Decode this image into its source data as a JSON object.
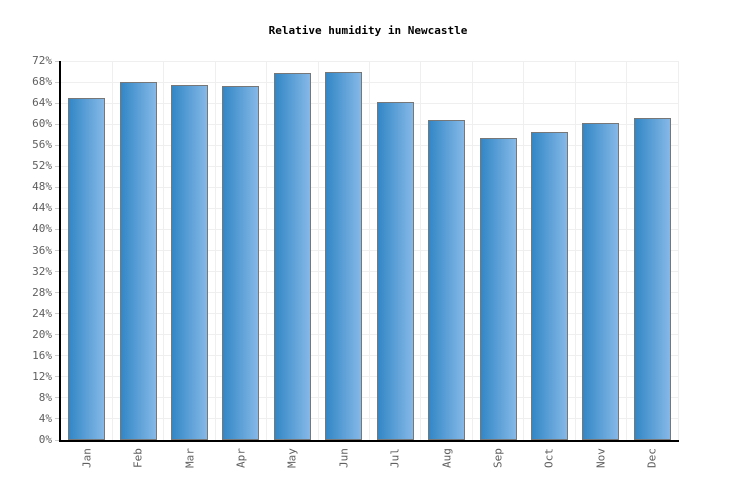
{
  "title": "Relative humidity in Newcastle",
  "chart_data": {
    "type": "bar",
    "title": "Relative humidity in Newcastle",
    "categories": [
      "Jan",
      "Feb",
      "Mar",
      "Apr",
      "May",
      "Jun",
      "Jul",
      "Aug",
      "Sep",
      "Oct",
      "Nov",
      "Dec"
    ],
    "values": [
      65,
      68,
      67.5,
      67.2,
      69.8,
      70,
      64.2,
      60.7,
      57.3,
      58.5,
      60.3,
      61.2
    ],
    "unit": "%",
    "xlabel": "",
    "ylabel": "",
    "ylim": [
      0,
      72
    ],
    "ytick_step": 4,
    "ytick_labels": [
      "0%",
      "4%",
      "8%",
      "12%",
      "16%",
      "20%",
      "24%",
      "28%",
      "32%",
      "36%",
      "40%",
      "44%",
      "48%",
      "52%",
      "56%",
      "60%",
      "64%",
      "68%",
      "72%"
    ],
    "grid": true,
    "legend": false,
    "bar_orientation": "vertical"
  },
  "colors": {
    "background": "#ffffff",
    "bar_gradient_left": "#3287c6",
    "bar_gradient_right": "#85b8e7",
    "bar_border": "#777777",
    "axis": "#000000",
    "gridline": "#efefef",
    "tick": "#cccccc",
    "label_text": "#5f5f5f",
    "title_text": "#000000"
  }
}
